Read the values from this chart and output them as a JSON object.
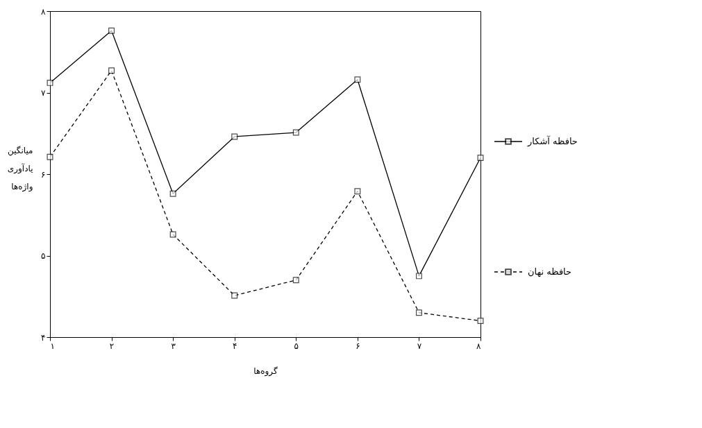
{
  "chart_data": {
    "type": "line",
    "xlabel": "گروه‌ها",
    "ylabel": "میانگین یادآوری واژه‌ها",
    "categories": [
      "۱",
      "۲",
      "۳",
      "۴",
      "۵",
      "۶",
      "۷",
      "۸"
    ],
    "ylim": [
      4,
      8
    ],
    "yticks": [
      {
        "value": 4,
        "label": "۴"
      },
      {
        "value": 5,
        "label": "۵"
      },
      {
        "value": 6,
        "label": "۶"
      },
      {
        "value": 7,
        "label": "۷"
      },
      {
        "value": 8,
        "label": "۸"
      }
    ],
    "grid": false,
    "legend": "right",
    "marker": "square",
    "series": [
      {
        "name": "حافظه آشکار",
        "color": "#000000",
        "line_style": "solid",
        "values": [
          7.12,
          7.76,
          5.76,
          6.46,
          6.51,
          7.16,
          4.75,
          6.2
        ]
      },
      {
        "name": "حافظه نهان",
        "color": "#000000",
        "line_style": "dashed",
        "values": [
          6.21,
          7.27,
          5.26,
          4.51,
          4.7,
          5.79,
          4.3,
          4.2
        ]
      }
    ]
  }
}
